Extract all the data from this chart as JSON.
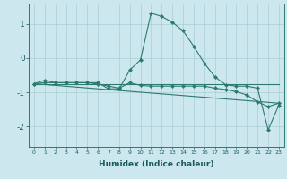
{
  "xlabel": "Humidex (Indice chaleur)",
  "ylabel": "",
  "bg_color": "#cce8ee",
  "grid_color": "#aacdd5",
  "line_color": "#2d7a6e",
  "xlim": [
    -0.5,
    23.5
  ],
  "ylim": [
    -2.6,
    1.6
  ],
  "yticks": [
    -2,
    -1,
    0,
    1
  ],
  "xticks": [
    0,
    1,
    2,
    3,
    4,
    5,
    6,
    7,
    8,
    9,
    10,
    11,
    12,
    13,
    14,
    15,
    16,
    17,
    18,
    19,
    20,
    21,
    22,
    23
  ],
  "series": [
    {
      "x": [
        0,
        1,
        2,
        3,
        4,
        5,
        6,
        7,
        8,
        9,
        10,
        11,
        12,
        13,
        14,
        15,
        16,
        17,
        18,
        19,
        20,
        21,
        22,
        23
      ],
      "y": [
        -0.75,
        -0.65,
        -0.72,
        -0.72,
        -0.72,
        -0.72,
        -0.72,
        -0.9,
        -0.9,
        -0.35,
        -0.05,
        1.32,
        1.22,
        1.05,
        0.8,
        0.35,
        -0.15,
        -0.55,
        -0.78,
        -0.82,
        -0.82,
        -0.88,
        -2.1,
        -1.38
      ],
      "markers": true
    },
    {
      "x": [
        0,
        1,
        2,
        3,
        4,
        5,
        6,
        7,
        8,
        9,
        10,
        11,
        12,
        13,
        14,
        15,
        16,
        17,
        18,
        19,
        20,
        21,
        22,
        23
      ],
      "y": [
        -0.75,
        -0.72,
        -0.72,
        -0.72,
        -0.72,
        -0.72,
        -0.76,
        -0.82,
        -0.88,
        -0.72,
        -0.8,
        -0.82,
        -0.82,
        -0.82,
        -0.82,
        -0.82,
        -0.82,
        -0.88,
        -0.92,
        -0.98,
        -1.08,
        -1.28,
        -1.42,
        -1.32
      ],
      "markers": true
    },
    {
      "x": [
        0,
        23
      ],
      "y": [
        -0.75,
        -0.75
      ],
      "markers": false
    },
    {
      "x": [
        0,
        23
      ],
      "y": [
        -0.75,
        -1.32
      ],
      "markers": false
    }
  ]
}
